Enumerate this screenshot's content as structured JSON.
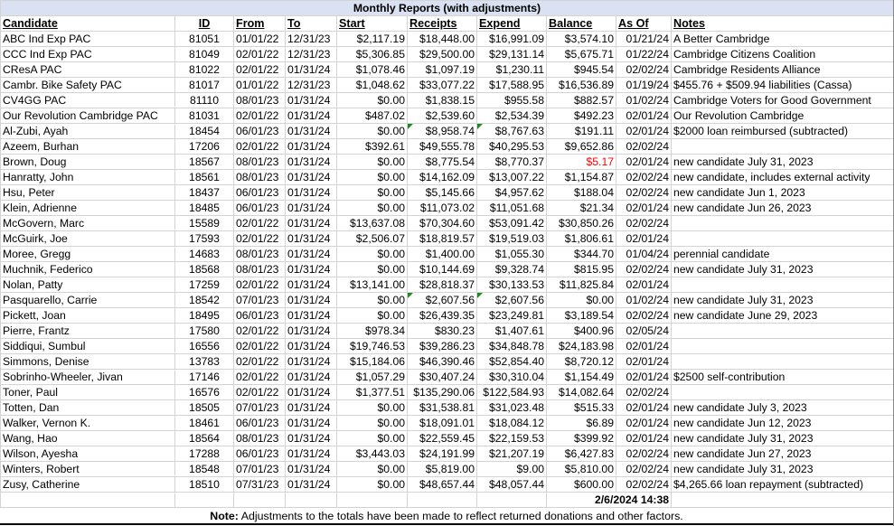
{
  "title": "Monthly Reports (with adjustments)",
  "columns": [
    "Candidate",
    "ID",
    "From",
    "To",
    "Start",
    "Receipts",
    "Expend",
    "Balance",
    "As Of",
    "Notes"
  ],
  "rows": [
    [
      "ABC Ind Exp PAC",
      "81051",
      "01/01/22",
      "12/31/23",
      "$2,117.19",
      "$18,448.00",
      "$16,991.09",
      "$3,574.10",
      "01/21/24",
      "A Better Cambridge"
    ],
    [
      "CCC Ind Exp PAC",
      "81049",
      "02/01/22",
      "12/31/23",
      "$5,306.85",
      "$29,500.00",
      "$29,131.14",
      "$5,675.71",
      "01/22/24",
      "Cambridge Citizens Coalition"
    ],
    [
      "CResA PAC",
      "81022",
      "02/01/22",
      "01/31/24",
      "$1,078.46",
      "$1,097.19",
      "$1,230.11",
      "$945.54",
      "02/02/24",
      "Cambridge Residents Alliance"
    ],
    [
      "Cambr. Bike Safety PAC",
      "81017",
      "01/01/22",
      "12/31/23",
      "$1,048.62",
      "$33,077.22",
      "$17,588.95",
      "$16,536.89",
      "01/19/24",
      "$455.76 + $509.94 liabilities (Cassa)"
    ],
    [
      "CV4GG PAC",
      "81110",
      "08/01/23",
      "01/31/24",
      "$0.00",
      "$1,838.15",
      "$955.58",
      "$882.57",
      "01/02/24",
      "Cambridge Voters for Good Government"
    ],
    [
      "Our Revolution Cambridge PAC",
      "81031",
      "02/01/22",
      "01/31/24",
      "$487.02",
      "$2,539.60",
      "$2,534.39",
      "$492.23",
      "02/01/24",
      "Our Revolution Cambridge"
    ],
    [
      "Al-Zubi, Ayah",
      "18454",
      "06/01/23",
      "01/31/24",
      "$0.00",
      "$8,958.74",
      "$8,767.63",
      "$191.11",
      "02/01/24",
      "$2000 loan reimbursed (subtracted)"
    ],
    [
      "Azeem, Burhan",
      "17206",
      "02/01/22",
      "01/31/24",
      "$392.61",
      "$49,555.78",
      "$40,295.53",
      "$9,652.86",
      "02/02/24",
      ""
    ],
    [
      "Brown, Doug",
      "18567",
      "08/01/23",
      "01/31/24",
      "$0.00",
      "$8,775.54",
      "$8,770.37",
      "$5.17",
      "02/01/24",
      "new candidate July 31, 2023"
    ],
    [
      "Hanratty, John",
      "18561",
      "08/01/23",
      "01/31/24",
      "$0.00",
      "$14,162.09",
      "$13,007.22",
      "$1,154.87",
      "02/02/24",
      "new candidate, includes external activity"
    ],
    [
      "Hsu, Peter",
      "18437",
      "06/01/23",
      "01/31/24",
      "$0.00",
      "$5,145.66",
      "$4,957.62",
      "$188.04",
      "02/02/24",
      "new candidate Jun 1, 2023"
    ],
    [
      "Klein, Adrienne",
      "18485",
      "06/01/23",
      "01/31/24",
      "$0.00",
      "$11,073.02",
      "$11,051.68",
      "$21.34",
      "02/01/24",
      "new candidate Jun 26, 2023"
    ],
    [
      "McGovern, Marc",
      "15589",
      "02/01/22",
      "01/31/24",
      "$13,637.08",
      "$70,304.60",
      "$53,091.42",
      "$30,850.26",
      "02/02/24",
      ""
    ],
    [
      "McGuirk, Joe",
      "17593",
      "02/01/22",
      "01/31/24",
      "$2,506.07",
      "$18,819.57",
      "$19,519.03",
      "$1,806.61",
      "02/01/24",
      ""
    ],
    [
      "Moree, Gregg",
      "14683",
      "08/01/23",
      "01/31/24",
      "$0.00",
      "$1,400.00",
      "$1,055.30",
      "$344.70",
      "01/04/24",
      "perennial candidate"
    ],
    [
      "Muchnik, Federico",
      "18568",
      "08/01/23",
      "01/31/24",
      "$0.00",
      "$10,144.69",
      "$9,328.74",
      "$815.95",
      "02/02/24",
      "new candidate July 31, 2023"
    ],
    [
      "Nolan, Patty",
      "17259",
      "02/01/22",
      "01/31/24",
      "$13,141.00",
      "$28,818.37",
      "$30,133.53",
      "$11,825.84",
      "02/01/24",
      ""
    ],
    [
      "Pasquarello, Carrie",
      "18542",
      "07/01/23",
      "01/31/24",
      "$0.00",
      "$2,607.56",
      "$2,607.56",
      "$0.00",
      "01/02/24",
      "new candidate July 31, 2023"
    ],
    [
      "Pickett, Joan",
      "18495",
      "06/01/23",
      "01/31/24",
      "$0.00",
      "$26,439.35",
      "$23,249.81",
      "$3,189.54",
      "02/02/24",
      "new candidate June 29, 2023"
    ],
    [
      "Pierre, Frantz",
      "17580",
      "02/01/22",
      "01/31/24",
      "$978.34",
      "$830.23",
      "$1,407.61",
      "$400.96",
      "02/05/24",
      ""
    ],
    [
      "Siddiqui, Sumbul",
      "16556",
      "02/01/22",
      "01/31/24",
      "$19,746.53",
      "$39,286.23",
      "$34,848.78",
      "$24,183.98",
      "02/01/24",
      ""
    ],
    [
      "Simmons, Denise",
      "13783",
      "02/01/22",
      "01/31/24",
      "$15,184.06",
      "$46,390.46",
      "$52,854.40",
      "$8,720.12",
      "02/01/24",
      ""
    ],
    [
      "Sobrinho-Wheeler, Jivan",
      "17146",
      "02/01/22",
      "01/31/24",
      "$1,057.29",
      "$30,407.24",
      "$30,310.04",
      "$1,154.49",
      "02/01/24",
      "$2500 self-contribution"
    ],
    [
      "Toner, Paul",
      "16576",
      "02/01/22",
      "01/31/24",
      "$1,377.51",
      "$135,290.06",
      "$122,584.93",
      "$14,082.64",
      "02/02/24",
      ""
    ],
    [
      "Totten, Dan",
      "18505",
      "07/01/23",
      "01/31/24",
      "$0.00",
      "$31,538.81",
      "$31,023.48",
      "$515.33",
      "02/01/24",
      "new candidate July 3, 2023"
    ],
    [
      "Walker, Vernon K.",
      "18461",
      "06/01/23",
      "01/31/24",
      "$0.00",
      "$18,091.01",
      "$18,084.12",
      "$6.89",
      "02/01/24",
      "new candidate Jun 12, 2023"
    ],
    [
      "Wang, Hao",
      "18564",
      "08/01/23",
      "01/31/24",
      "$0.00",
      "$22,559.45",
      "$22,159.53",
      "$399.92",
      "02/01/24",
      "new candidate July 31, 2023"
    ],
    [
      "Wilson, Ayesha",
      "17288",
      "06/01/23",
      "01/31/24",
      "$3,443.03",
      "$24,191.99",
      "$21,207.19",
      "$6,427.83",
      "02/02/24",
      "new candidate Jun 27, 2023"
    ],
    [
      "Winters, Robert",
      "18548",
      "07/01/23",
      "01/31/24",
      "$0.00",
      "$5,819.00",
      "$9.00",
      "$5,810.00",
      "02/02/24",
      "new candidate July 31, 2023"
    ],
    [
      "Zusy, Catherine",
      "18510",
      "07/31/23",
      "01/31/24",
      "$0.00",
      "$48,657.44",
      "$48,057.44",
      "$600.00",
      "02/02/24",
      "$4,265.66 loan repayment (subtracted)"
    ]
  ],
  "negative_balance_rows": [
    8
  ],
  "comment_flag_rows": [
    6,
    17
  ],
  "timestamp": "2/6/2024 14:38",
  "note": {
    "label": "Note:",
    "text": " Adjustments to the totals have been made to reflect returned donations and other factors."
  },
  "colors": {
    "title_bg": "#d9e1f2",
    "negative": "#ff0000",
    "comment_flag": "#1e8a1e"
  }
}
